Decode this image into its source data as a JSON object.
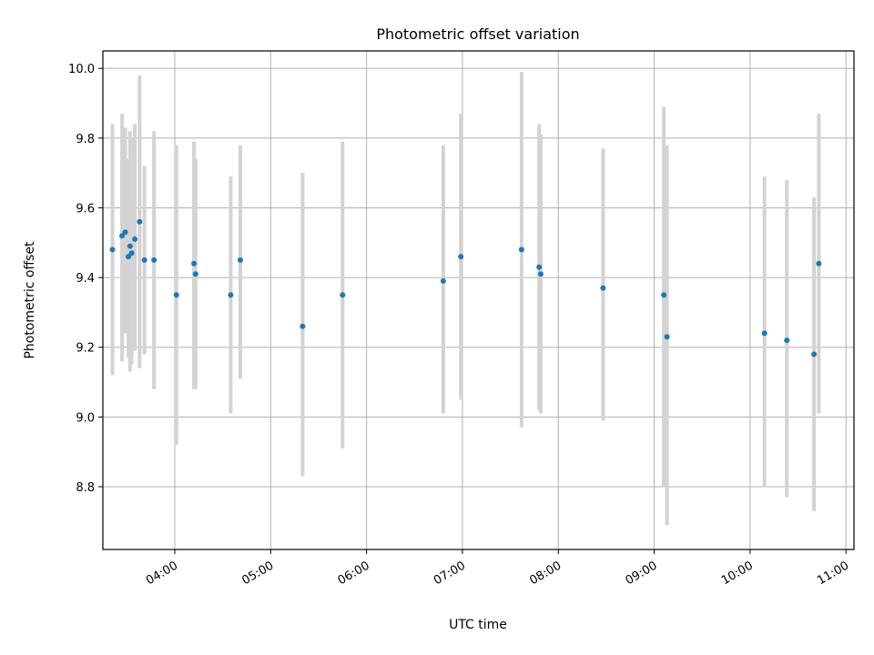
{
  "chart_data": {
    "type": "scatter",
    "title": "Photometric offset variation",
    "xlabel": "UTC time",
    "ylabel": "Photometric offset",
    "xlim": [
      "03:15",
      "11:05"
    ],
    "ylim": [
      8.62,
      10.05
    ],
    "grid": true,
    "x_ticks": [
      "04:00",
      "05:00",
      "06:00",
      "07:00",
      "08:00",
      "09:00",
      "10:00",
      "11:00"
    ],
    "y_ticks": [
      "8.8",
      "9.0",
      "9.2",
      "9.4",
      "9.6",
      "9.8",
      "10.0"
    ],
    "marker_color": "#1f77b4",
    "errorbar_color": "#d3d3d3",
    "points": [
      {
        "x": "03:21",
        "y": 9.48,
        "ylo": 9.12,
        "yhi": 9.84
      },
      {
        "x": "03:27",
        "y": 9.52,
        "ylo": 9.16,
        "yhi": 9.87
      },
      {
        "x": "03:29",
        "y": 9.53,
        "ylo": 9.24,
        "yhi": 9.83
      },
      {
        "x": "03:31",
        "y": 9.46,
        "ylo": 9.17,
        "yhi": 9.74
      },
      {
        "x": "03:32",
        "y": 9.49,
        "ylo": 9.13,
        "yhi": 9.82
      },
      {
        "x": "03:33",
        "y": 9.47,
        "ylo": 9.15,
        "yhi": 9.8
      },
      {
        "x": "03:35",
        "y": 9.51,
        "ylo": 9.19,
        "yhi": 9.84
      },
      {
        "x": "03:38",
        "y": 9.56,
        "ylo": 9.14,
        "yhi": 9.98
      },
      {
        "x": "03:41",
        "y": 9.45,
        "ylo": 9.18,
        "yhi": 9.72
      },
      {
        "x": "03:47",
        "y": 9.45,
        "ylo": 9.08,
        "yhi": 9.82
      },
      {
        "x": "04:01",
        "y": 9.35,
        "ylo": 8.92,
        "yhi": 9.78
      },
      {
        "x": "04:12",
        "y": 9.44,
        "ylo": 9.08,
        "yhi": 9.79
      },
      {
        "x": "04:13",
        "y": 9.41,
        "ylo": 9.08,
        "yhi": 9.74
      },
      {
        "x": "04:35",
        "y": 9.35,
        "ylo": 9.01,
        "yhi": 9.69
      },
      {
        "x": "04:41",
        "y": 9.45,
        "ylo": 9.11,
        "yhi": 9.78
      },
      {
        "x": "05:20",
        "y": 9.26,
        "ylo": 8.83,
        "yhi": 9.7
      },
      {
        "x": "05:45",
        "y": 9.35,
        "ylo": 8.91,
        "yhi": 9.79
      },
      {
        "x": "06:48",
        "y": 9.39,
        "ylo": 9.01,
        "yhi": 9.78
      },
      {
        "x": "06:59",
        "y": 9.46,
        "ylo": 9.05,
        "yhi": 9.87
      },
      {
        "x": "07:37",
        "y": 9.48,
        "ylo": 8.97,
        "yhi": 9.99
      },
      {
        "x": "07:48",
        "y": 9.43,
        "ylo": 9.02,
        "yhi": 9.84
      },
      {
        "x": "07:49",
        "y": 9.41,
        "ylo": 9.01,
        "yhi": 9.81
      },
      {
        "x": "08:28",
        "y": 9.37,
        "ylo": 8.99,
        "yhi": 9.77
      },
      {
        "x": "09:06",
        "y": 9.35,
        "ylo": 8.8,
        "yhi": 9.89
      },
      {
        "x": "09:08",
        "y": 9.23,
        "ylo": 8.69,
        "yhi": 9.78
      },
      {
        "x": "10:09",
        "y": 9.24,
        "ylo": 8.8,
        "yhi": 9.69
      },
      {
        "x": "10:23",
        "y": 9.22,
        "ylo": 8.77,
        "yhi": 9.68
      },
      {
        "x": "10:40",
        "y": 9.18,
        "ylo": 8.73,
        "yhi": 9.63
      },
      {
        "x": "10:43",
        "y": 9.44,
        "ylo": 9.01,
        "yhi": 9.87
      }
    ]
  }
}
